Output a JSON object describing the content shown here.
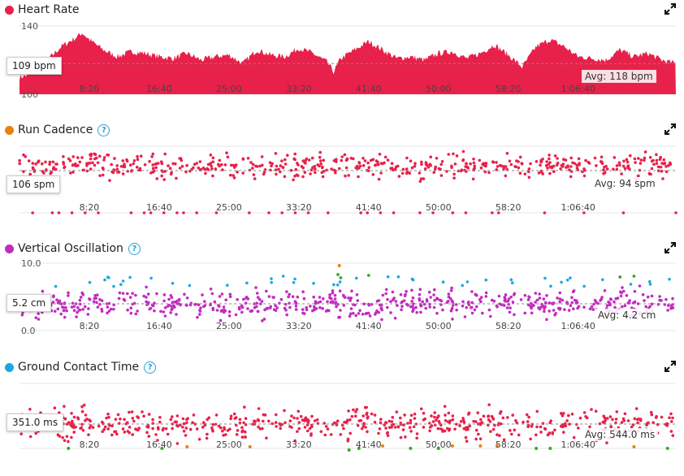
{
  "colors": {
    "hr": "#e8214a",
    "cadence": "#e8214a",
    "vo": "#c22bc0",
    "gct": "#e8214a",
    "blue": "#1ba8e0",
    "green": "#35a830",
    "orange": "#e8820e",
    "dot_hr": "#e8214a",
    "dot_cad": "#e8820e",
    "dot_vo": "#c22bc0",
    "dot_gct": "#1ba8e0"
  },
  "icons": {
    "expand": "expand-icon",
    "help": "help-icon"
  },
  "x_ticks": [
    "8:20",
    "16:40",
    "25:00",
    "33:20",
    "41:40",
    "50:00",
    "58:20",
    "1:06:40"
  ],
  "panels": {
    "hr": {
      "title": "Heart Rate",
      "current": "109 bpm",
      "avg": "Avg: 118 bpm",
      "ymax": "140",
      "ymin": "100"
    },
    "cad": {
      "title": "Run Cadence",
      "help": "?",
      "current": "106 spm",
      "avg": "Avg: 94 spm"
    },
    "vo": {
      "title": "Vertical Oscillation",
      "help": "?",
      "current": "5.2 cm",
      "avg": "Avg: 4.2 cm",
      "ymax": "10.0",
      "ymin": "0.0"
    },
    "gct": {
      "title": "Ground Contact Time",
      "help": "?",
      "current": "351.0 ms",
      "avg": "Avg: 544.0 ms"
    }
  },
  "chart_data": [
    {
      "type": "area",
      "title": "Heart Rate",
      "unit": "bpm",
      "ylim": [
        100,
        140
      ],
      "xlim_s": [
        0,
        4700
      ],
      "average": 118,
      "x_s": [
        0,
        100,
        200,
        300,
        400,
        450,
        500,
        600,
        700,
        800,
        900,
        1000,
        1100,
        1200,
        1300,
        1400,
        1500,
        1600,
        1700,
        1800,
        1900,
        2000,
        2100,
        2200,
        2250,
        2300,
        2400,
        2500,
        2600,
        2700,
        2800,
        2900,
        3000,
        3100,
        3200,
        3300,
        3400,
        3500,
        3600,
        3700,
        3800,
        3900,
        4000,
        4100,
        4200,
        4300,
        4400,
        4500,
        4600,
        4700
      ],
      "y": [
        110,
        112,
        120,
        128,
        133,
        136,
        132,
        126,
        122,
        125,
        124,
        122,
        121,
        124,
        120,
        122,
        123,
        118,
        126,
        123,
        122,
        127,
        124,
        119,
        113,
        121,
        126,
        131,
        126,
        121,
        122,
        120,
        124,
        125,
        121,
        124,
        129,
        123,
        116,
        128,
        132,
        128,
        122,
        121,
        120,
        126,
        122,
        124,
        120,
        118
      ]
    },
    {
      "type": "scatter",
      "title": "Run Cadence",
      "unit": "spm",
      "average": 94,
      "xlim_s": [
        0,
        4700
      ]
    },
    {
      "type": "scatter",
      "title": "Vertical Oscillation",
      "unit": "cm",
      "ylim": [
        0,
        10
      ],
      "average": 4.2,
      "xlim_s": [
        0,
        4700
      ]
    },
    {
      "type": "scatter",
      "title": "Ground Contact Time",
      "unit": "ms",
      "average": 544,
      "xlim_s": [
        0,
        4700
      ]
    }
  ]
}
